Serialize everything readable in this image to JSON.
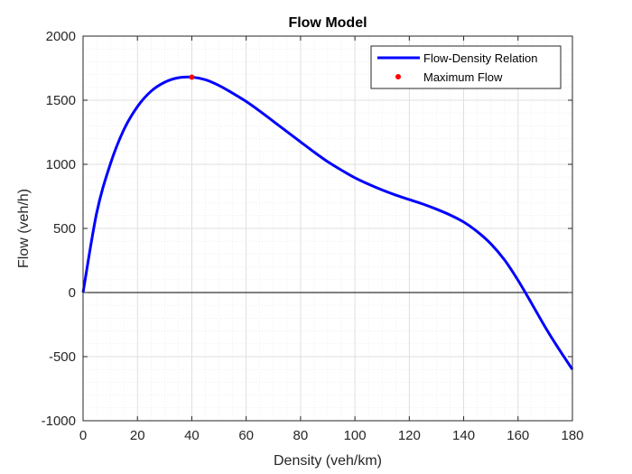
{
  "chart_data": {
    "type": "line",
    "title": "Flow Model",
    "xlabel": "Density (veh/km)",
    "ylabel": "Flow (veh/h)",
    "xlim": [
      0,
      180
    ],
    "ylim": [
      -1000,
      2000
    ],
    "xticks": [
      0,
      20,
      40,
      60,
      80,
      100,
      120,
      140,
      160,
      180
    ],
    "yticks": [
      -1000,
      -500,
      0,
      500,
      1000,
      1500,
      2000
    ],
    "grid": true,
    "minor_grid": true,
    "zero_line": true,
    "legend_position": "top-right",
    "series": [
      {
        "name": "Flow-Density Relation",
        "color": "#0000ff",
        "x": [
          0,
          5,
          10,
          15,
          20,
          25,
          30,
          35,
          40,
          45,
          50,
          55,
          60,
          65,
          70,
          75,
          80,
          85,
          90,
          95,
          100,
          105,
          110,
          115,
          120,
          125,
          130,
          135,
          140,
          145,
          150,
          155,
          160,
          165,
          170,
          175,
          180
        ],
        "y": [
          0,
          620,
          1000,
          1270,
          1450,
          1570,
          1640,
          1675,
          1680,
          1660,
          1615,
          1555,
          1490,
          1415,
          1335,
          1255,
          1175,
          1095,
          1020,
          955,
          895,
          845,
          800,
          760,
          725,
          690,
          650,
          605,
          550,
          475,
          380,
          255,
          95,
          -85,
          -270,
          -440,
          -600
        ]
      },
      {
        "name": "Maximum Flow",
        "color": "#ff0000",
        "marker": "dot",
        "x": [
          40
        ],
        "y": [
          1680
        ]
      }
    ]
  }
}
